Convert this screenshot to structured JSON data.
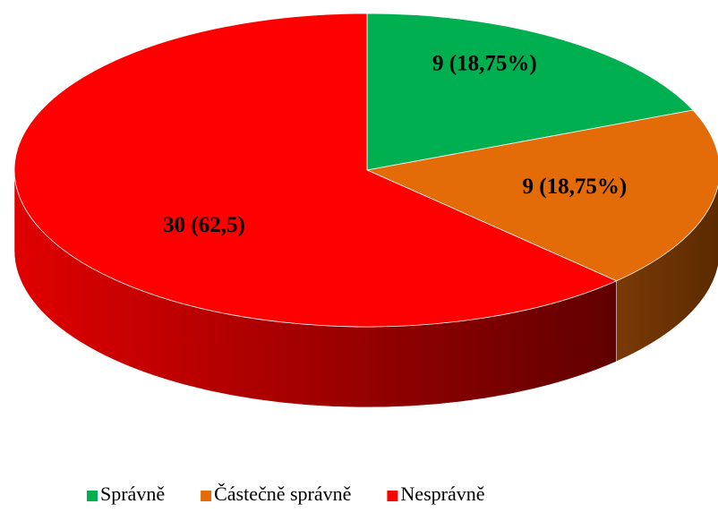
{
  "chart_data": {
    "type": "pie",
    "categories": [
      "Správně",
      "Částečně správně",
      "Nesprávně"
    ],
    "values": [
      9,
      9,
      30
    ],
    "value_labels": [
      "9 (18,75%)",
      "9 (18,75%)",
      "30 (62,5)"
    ],
    "colors": [
      "#00b050",
      "#e36c09",
      "#ff0000"
    ],
    "legend": "bottom"
  }
}
